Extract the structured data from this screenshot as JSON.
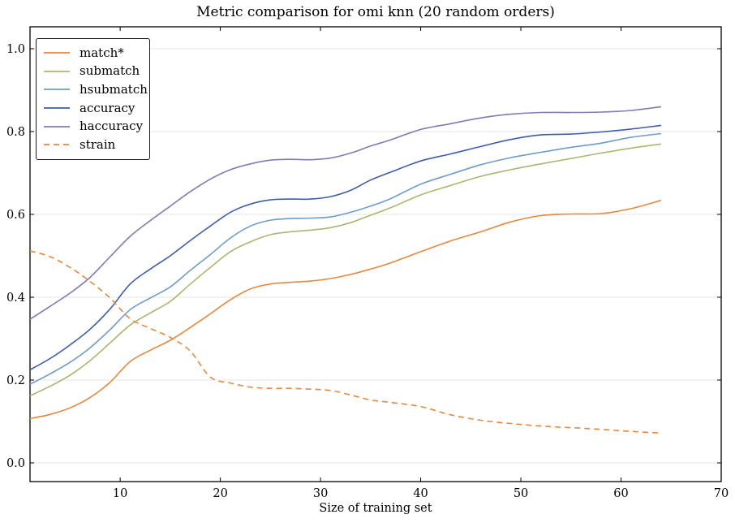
{
  "figure": {
    "title": "Metric comparison for omi knn (20 random orders)",
    "xlabel": "Size of training set"
  },
  "colors": {
    "background": "#ffffff",
    "axis": "#000000",
    "grid": "#e6e6e6",
    "orange": "#e8873e",
    "olive": "#a8b86e",
    "light_blue": "#6d9ccd",
    "blue": "#3d5cac",
    "purple": "#8478ba"
  },
  "chart_data": {
    "type": "line",
    "title": "Metric comparison for omi knn (20 random orders)",
    "xlabel": "Size of training set",
    "ylabel": "",
    "xlim": [
      1,
      70
    ],
    "ylim": [
      -0.045,
      1.053
    ],
    "x_ticks": [
      10,
      20,
      30,
      40,
      50,
      60,
      70
    ],
    "y_ticks": [
      {
        "label": "0.0",
        "value": 0.0
      },
      {
        "label": "0.2",
        "value": 0.2
      },
      {
        "label": "0.4",
        "value": 0.4
      },
      {
        "label": "0.6",
        "value": 0.6
      },
      {
        "label": "0.8",
        "value": 0.8
      },
      {
        "label": "1.0",
        "value": 1.0
      }
    ],
    "grid": "horizontal",
    "legend_position": "upper left",
    "x": [
      1,
      3,
      5,
      7,
      9,
      11,
      13,
      15,
      17,
      19,
      21,
      23,
      25,
      27,
      29,
      31,
      33,
      35,
      37,
      40,
      43,
      46,
      49,
      52,
      55,
      58,
      61,
      64
    ],
    "series": [
      {
        "name": "match*",
        "color": "#e8873e",
        "style": "solid",
        "values": [
          0.107,
          0.117,
          0.133,
          0.158,
          0.195,
          0.245,
          0.272,
          0.296,
          0.327,
          0.36,
          0.394,
          0.42,
          0.432,
          0.436,
          0.439,
          0.445,
          0.455,
          0.468,
          0.483,
          0.51,
          0.536,
          0.558,
          0.582,
          0.597,
          0.601,
          0.602,
          0.614,
          0.634
        ]
      },
      {
        "name": "submatch",
        "color": "#a8b86e",
        "style": "solid",
        "values": [
          0.162,
          0.185,
          0.212,
          0.247,
          0.29,
          0.333,
          0.362,
          0.39,
          0.432,
          0.472,
          0.51,
          0.534,
          0.551,
          0.558,
          0.562,
          0.568,
          0.58,
          0.598,
          0.616,
          0.647,
          0.67,
          0.692,
          0.708,
          0.722,
          0.735,
          0.748,
          0.76,
          0.77
        ]
      },
      {
        "name": "hsubmatch",
        "color": "#6d9ccd",
        "style": "solid",
        "values": [
          0.19,
          0.215,
          0.243,
          0.278,
          0.322,
          0.37,
          0.398,
          0.425,
          0.465,
          0.503,
          0.543,
          0.572,
          0.586,
          0.59,
          0.591,
          0.594,
          0.605,
          0.62,
          0.638,
          0.673,
          0.697,
          0.72,
          0.737,
          0.75,
          0.762,
          0.772,
          0.786,
          0.795
        ]
      },
      {
        "name": "accuracy",
        "color": "#3d5cac",
        "style": "solid",
        "values": [
          0.225,
          0.252,
          0.285,
          0.323,
          0.372,
          0.432,
          0.468,
          0.5,
          0.537,
          0.572,
          0.605,
          0.625,
          0.635,
          0.637,
          0.637,
          0.643,
          0.658,
          0.683,
          0.702,
          0.729,
          0.746,
          0.764,
          0.781,
          0.792,
          0.794,
          0.799,
          0.806,
          0.815
        ]
      },
      {
        "name": "haccuracy",
        "color": "#8478ba",
        "style": "solid",
        "values": [
          0.347,
          0.378,
          0.41,
          0.448,
          0.498,
          0.547,
          0.585,
          0.62,
          0.655,
          0.685,
          0.708,
          0.722,
          0.731,
          0.733,
          0.732,
          0.736,
          0.748,
          0.765,
          0.78,
          0.805,
          0.819,
          0.833,
          0.842,
          0.846,
          0.846,
          0.847,
          0.851,
          0.86
        ]
      },
      {
        "name": "strain",
        "color": "#e8873e",
        "style": "dashed",
        "values": [
          0.512,
          0.498,
          0.472,
          0.438,
          0.398,
          0.348,
          0.325,
          0.303,
          0.27,
          0.207,
          0.193,
          0.183,
          0.18,
          0.18,
          0.178,
          0.175,
          0.164,
          0.152,
          0.146,
          0.136,
          0.116,
          0.103,
          0.095,
          0.089,
          0.085,
          0.081,
          0.076,
          0.072
        ]
      }
    ]
  }
}
